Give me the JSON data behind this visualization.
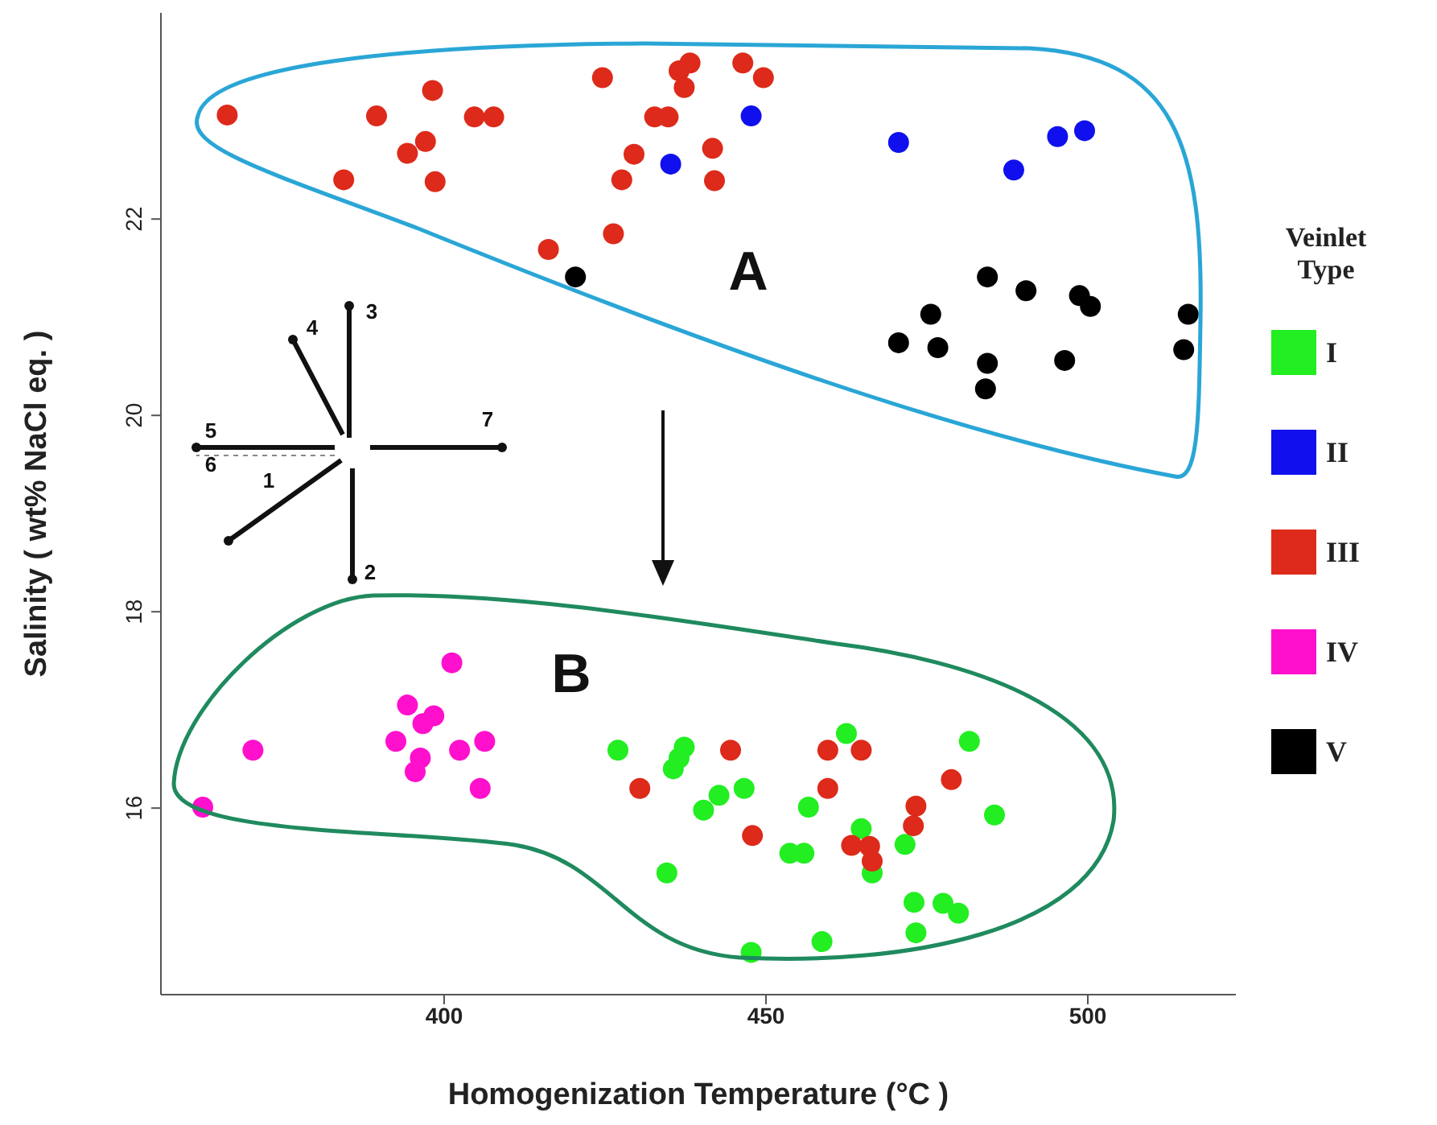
{
  "chart_data": {
    "type": "scatter",
    "xlabel": "Homogenization Temperature (°C )",
    "ylabel": "Salinity ( wt% NaCl eq. )",
    "legend_title": "Veinlet Type",
    "xlim": [
      356,
      523
    ],
    "xticks": [
      400,
      450,
      500
    ],
    "ylim": [
      14.1,
      24.1
    ],
    "yticks": [
      16,
      18,
      20,
      22
    ],
    "grid": false,
    "legend": "right",
    "marker": "circle",
    "annotations": [
      "A",
      "B",
      "1",
      "2",
      "3",
      "4",
      "5",
      "6",
      "7"
    ],
    "series": [
      {
        "name": "I",
        "color": "#22ee22",
        "x": [
          427.0,
          434.6,
          437.3,
          435.6,
          436.5,
          446.6,
          440.3,
          442.7,
          447.7,
          453.7,
          455.9,
          456.6,
          462.5,
          458.7,
          464.8,
          466.5,
          471.6,
          481.6,
          485.5,
          473.0,
          477.5,
          479.9,
          473.3
        ],
        "values": [
          16.59,
          15.34,
          16.62,
          16.4,
          16.51,
          16.2,
          15.98,
          16.13,
          14.53,
          15.54,
          15.54,
          16.01,
          16.76,
          14.64,
          15.79,
          15.34,
          15.63,
          16.68,
          15.93,
          15.04,
          15.03,
          14.93,
          14.73
        ]
      },
      {
        "name": "II",
        "color": "#1010ee",
        "x": [
          435.2,
          447.7,
          470.6,
          488.5,
          495.3,
          499.5
        ],
        "values": [
          22.56,
          23.05,
          22.78,
          22.5,
          22.84,
          22.9
        ]
      },
      {
        "name": "III",
        "color": "#dd2a1a",
        "x": [
          366.3,
          389.5,
          398.2,
          404.7,
          407.7,
          397.1,
          394.3,
          384.4,
          398.6,
          424.6,
          432.7,
          434.8,
          429.5,
          427.6,
          426.3,
          416.2,
          436.5,
          438.2,
          437.3,
          446.4,
          449.6,
          441.7,
          442.0,
          430.4,
          444.5,
          447.9,
          459.6,
          464.8,
          459.6,
          463.3,
          466.1,
          466.5,
          473.3,
          472.9,
          478.8
        ],
        "values": [
          23.06,
          23.05,
          23.31,
          23.04,
          23.04,
          22.79,
          22.67,
          22.4,
          22.38,
          23.44,
          23.04,
          23.04,
          22.66,
          22.4,
          21.85,
          21.69,
          23.51,
          23.59,
          23.34,
          23.59,
          23.44,
          22.72,
          22.39,
          16.2,
          16.59,
          15.72,
          16.59,
          16.59,
          16.2,
          15.62,
          15.61,
          15.46,
          16.02,
          15.82,
          16.29
        ]
      },
      {
        "name": "IV",
        "color": "#ff10cc",
        "x": [
          362.5,
          370.3,
          401.2,
          394.3,
          398.4,
          396.7,
          392.5,
          402.4,
          406.3,
          396.3,
          395.5,
          405.6
        ],
        "values": [
          16.01,
          16.59,
          17.48,
          17.05,
          16.94,
          16.86,
          16.68,
          16.59,
          16.68,
          16.51,
          16.37,
          16.2
        ]
      },
      {
        "name": "V",
        "color": "#000000",
        "x": [
          420.4,
          484.4,
          490.4,
          498.7,
          500.4,
          475.6,
          470.6,
          476.7,
          484.4,
          484.1,
          496.4,
          515.6,
          514.9
        ],
        "values": [
          21.41,
          21.41,
          21.27,
          21.22,
          21.11,
          21.03,
          20.74,
          20.69,
          20.53,
          20.27,
          20.56,
          21.03,
          20.67
        ]
      }
    ]
  }
}
